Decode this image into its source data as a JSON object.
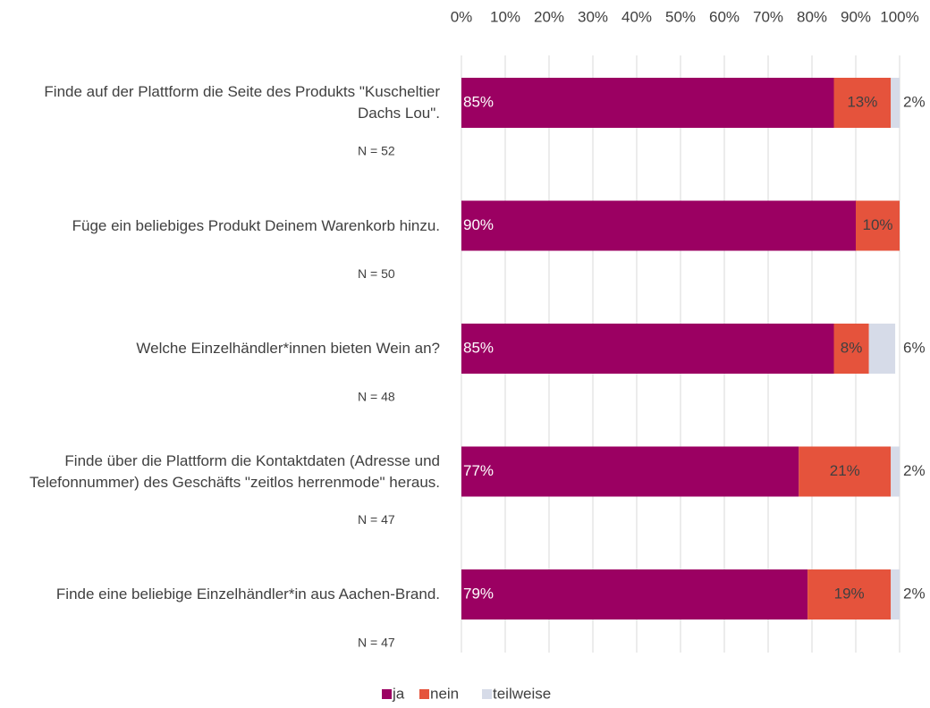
{
  "chart_data": {
    "type": "stacked_bar_horizontal",
    "categories": [
      "Finde auf der Plattform die Seite des Produkts \"Kuscheltier Dachs Lou\".",
      "Füge ein beliebiges Produkt Deinem Warenkorb hinzu.",
      "Welche Einzelhändler*innen bieten Wein an?",
      "Finde über die Plattform die Kontaktdaten (Adresse und Telefonnummer) des Geschäfts \"zeitlos herrenmode\" heraus.",
      "Finde eine beliebige Einzelhändler*in aus Aachen-Brand."
    ],
    "sample_sizes": [
      "N = 52",
      "N = 50",
      "N = 48",
      "N = 47",
      "N = 47"
    ],
    "series": [
      {
        "name": "ja",
        "color": "#9b0062",
        "values": [
          85,
          90,
          85,
          77,
          79
        ],
        "value_labels": [
          "85%",
          "90%",
          "85%",
          "77%",
          "79%"
        ]
      },
      {
        "name": "nein",
        "color": "#e5533c",
        "values": [
          13,
          10,
          8,
          21,
          19
        ],
        "value_labels": [
          "13%",
          "10%",
          "8%",
          "21%",
          "19%"
        ]
      },
      {
        "name": "teilweise",
        "color": "#d6dbe8",
        "values": [
          2,
          null,
          6,
          2,
          2
        ],
        "value_labels": [
          "2%",
          null,
          "6%",
          "2%",
          "2%"
        ]
      }
    ],
    "xlim": [
      0,
      100
    ],
    "xticks": [
      {
        "value": 0,
        "label": "0%"
      },
      {
        "value": 10,
        "label": "10%"
      },
      {
        "value": 20,
        "label": "20%"
      },
      {
        "value": 30,
        "label": "30%"
      },
      {
        "value": 40,
        "label": "40%"
      },
      {
        "value": 50,
        "label": "50%"
      },
      {
        "value": 60,
        "label": "60%"
      },
      {
        "value": 70,
        "label": "70%"
      },
      {
        "value": 80,
        "label": "80%"
      },
      {
        "value": 90,
        "label": "90%"
      },
      {
        "value": 100,
        "label": "100%"
      }
    ],
    "grid": true,
    "legend": "bottom"
  }
}
